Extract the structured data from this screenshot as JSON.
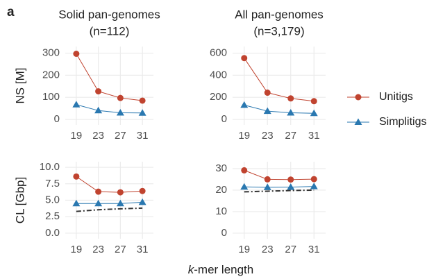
{
  "panel_label": "a",
  "xlabel": "k-mer length",
  "chart_data": [
    {
      "type": "line",
      "title": "Solid pan-genomes",
      "subtitle": "(n=112)",
      "ylabel": "NS [M]",
      "x": [
        19,
        23,
        27,
        31
      ],
      "xlim": [
        17,
        33
      ],
      "xticks": [
        19,
        23,
        27,
        31
      ],
      "ylim": [
        -25,
        330
      ],
      "yticks": [
        0,
        100,
        200,
        300
      ],
      "grid": true,
      "series": [
        {
          "name": "Unitigs",
          "color": "#c0432f",
          "marker": "circle",
          "values": [
            297,
            127,
            97,
            85
          ]
        },
        {
          "name": "Simplitigs",
          "color": "#2a78b0",
          "marker": "triangle",
          "values": [
            67,
            40,
            30,
            29
          ]
        }
      ]
    },
    {
      "type": "line",
      "title": "All pan-genomes",
      "subtitle": "(n=3,179)",
      "x": [
        19,
        23,
        27,
        31
      ],
      "xlim": [
        17,
        33
      ],
      "xticks": [
        19,
        23,
        27,
        31
      ],
      "ylim": [
        -50,
        660
      ],
      "yticks": [
        0,
        200,
        400,
        600
      ],
      "grid": true,
      "series": [
        {
          "name": "Unitigs",
          "color": "#c0432f",
          "marker": "circle",
          "values": [
            555,
            242,
            190,
            165
          ]
        },
        {
          "name": "Simplitigs",
          "color": "#2a78b0",
          "marker": "triangle",
          "values": [
            130,
            75,
            60,
            55
          ]
        }
      ]
    },
    {
      "type": "line",
      "ylabel": "CL [Gbp]",
      "x": [
        19,
        23,
        27,
        31
      ],
      "xlim": [
        17,
        33
      ],
      "xticks": [
        19,
        23,
        27,
        31
      ],
      "ylim": [
        -0.85,
        10.85
      ],
      "yticks": [
        {
          "value": 0,
          "label": "0.0"
        },
        2.5,
        {
          "value": 5,
          "label": "5.0"
        },
        7.5,
        {
          "value": 10,
          "label": "10.0"
        }
      ],
      "grid": true,
      "series": [
        {
          "name": "Unitigs",
          "color": "#c0432f",
          "marker": "circle",
          "values": [
            8.6,
            6.3,
            6.2,
            6.4
          ]
        },
        {
          "name": "Simplitigs",
          "color": "#2a78b0",
          "marker": "triangle",
          "values": [
            4.5,
            4.5,
            4.5,
            4.7
          ]
        },
        {
          "color": "#333333",
          "linestyle": "dashdot",
          "values": [
            3.3,
            3.55,
            3.7,
            3.8
          ]
        }
      ]
    },
    {
      "type": "line",
      "x": [
        19,
        23,
        27,
        31
      ],
      "xlim": [
        17,
        33
      ],
      "xticks": [
        19,
        23,
        27,
        31
      ],
      "ylim": [
        -2.6,
        33.2
      ],
      "yticks": [
        0,
        10,
        20,
        30
      ],
      "grid": true,
      "series": [
        {
          "name": "Unitigs",
          "color": "#c0432f",
          "marker": "circle",
          "values": [
            29.2,
            25,
            24.9,
            25.1
          ]
        },
        {
          "name": "Simplitigs",
          "color": "#2a78b0",
          "marker": "triangle",
          "values": [
            21.5,
            21.3,
            21.4,
            21.7
          ]
        },
        {
          "color": "#333333",
          "linestyle": "dashdot",
          "values": [
            19.2,
            19.5,
            19.8,
            20.0
          ]
        }
      ]
    }
  ]
}
